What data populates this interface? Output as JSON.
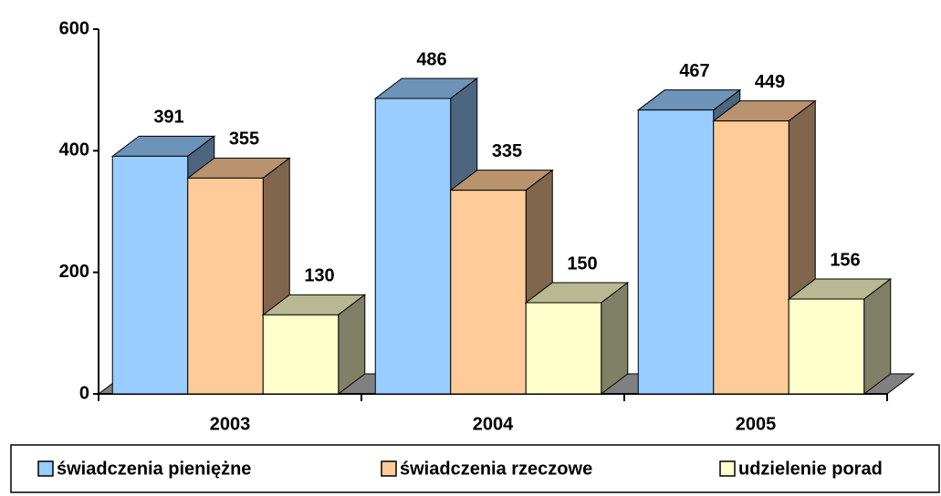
{
  "chart_data": {
    "type": "bar3d",
    "categories": [
      "2003",
      "2004",
      "2005"
    ],
    "series": [
      {
        "name": "świadczenia pieniężne",
        "color": "#99ccff",
        "values": [
          391,
          486,
          467
        ]
      },
      {
        "name": "świadczenia rzeczowe",
        "color": "#ffcc99",
        "values": [
          355,
          335,
          449
        ]
      },
      {
        "name": "udzielenie porad",
        "color": "#ffffcc",
        "values": [
          130,
          150,
          156
        ]
      }
    ],
    "ylim": [
      0,
      600
    ],
    "yticks": [
      0,
      200,
      400,
      600
    ],
    "legend": "bottom"
  }
}
